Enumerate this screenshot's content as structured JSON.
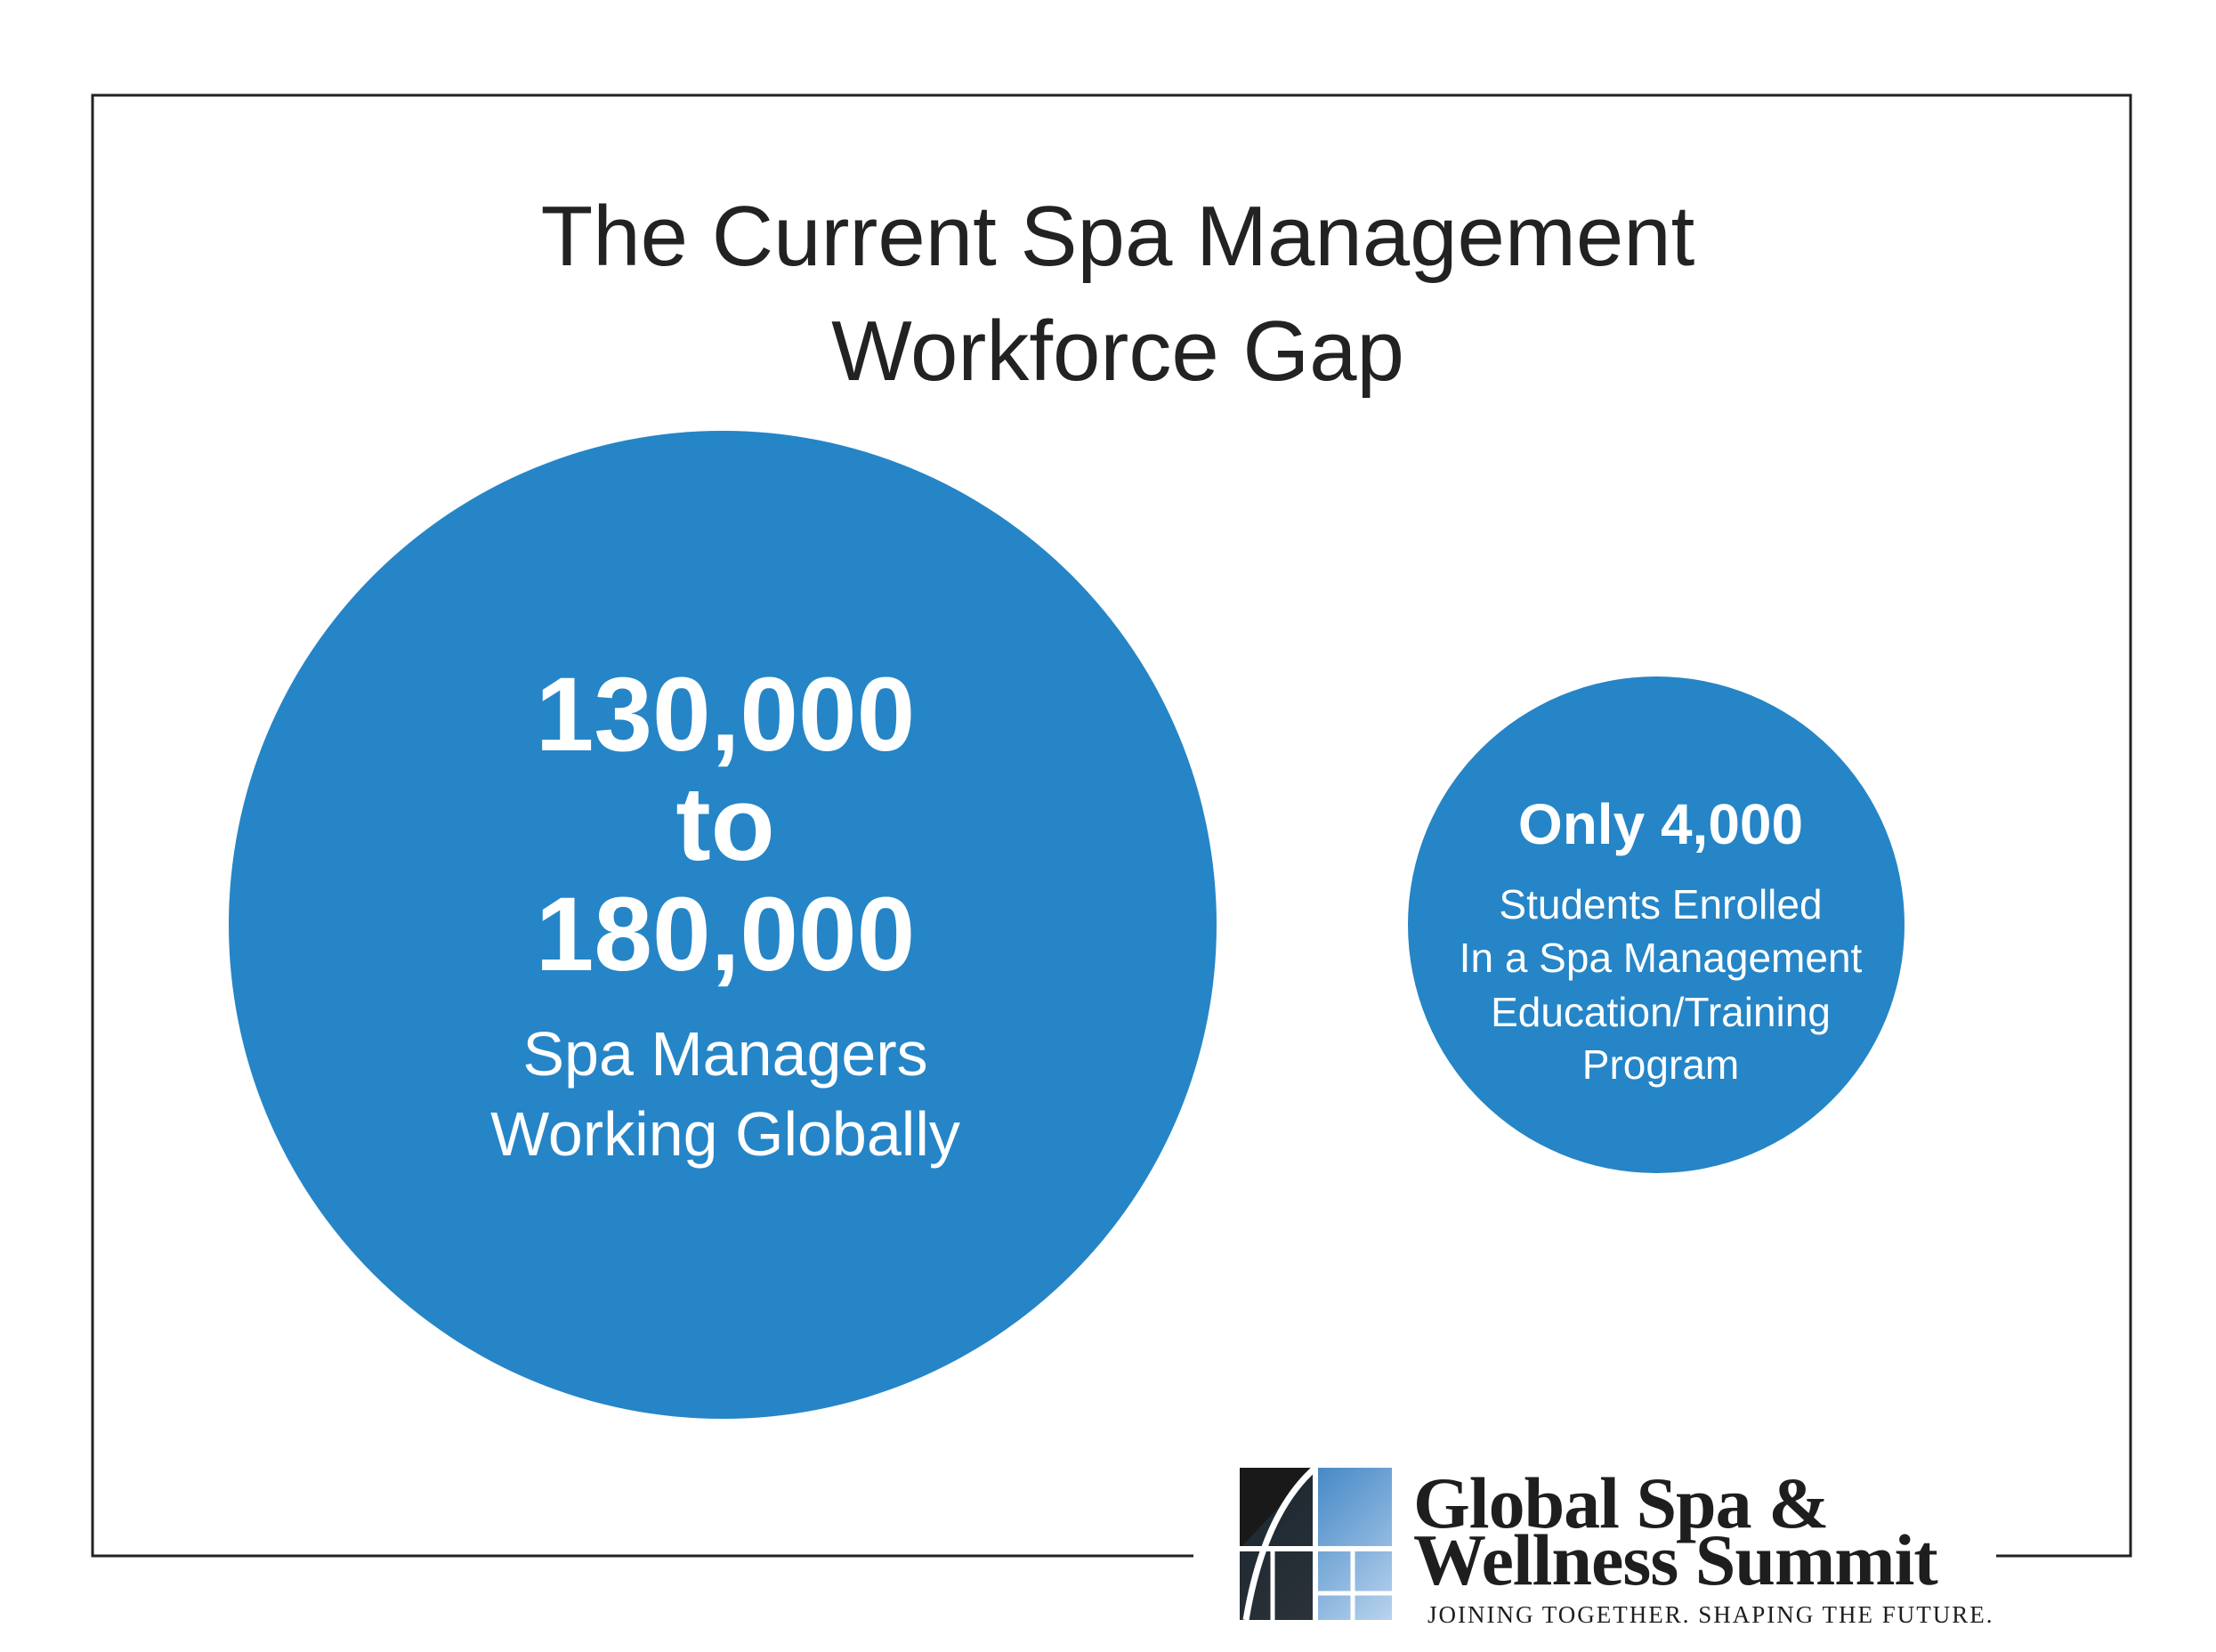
{
  "title": [
    "The Current Spa Management",
    "Workforce Gap"
  ],
  "circles": [
    {
      "figure": [
        "130,000",
        "to",
        "180,000"
      ],
      "caption": [
        "Spa Managers",
        "Working Globally"
      ]
    },
    {
      "figure": [
        "Only 4,000"
      ],
      "caption": [
        "Students Enrolled",
        "In a Spa Management",
        "Education/Training",
        "Program"
      ]
    }
  ],
  "logo": {
    "name": [
      "Global Spa &",
      "Wellness Summit"
    ],
    "tagline": "JOINING TOGETHER. SHAPING THE FUTURE."
  }
}
